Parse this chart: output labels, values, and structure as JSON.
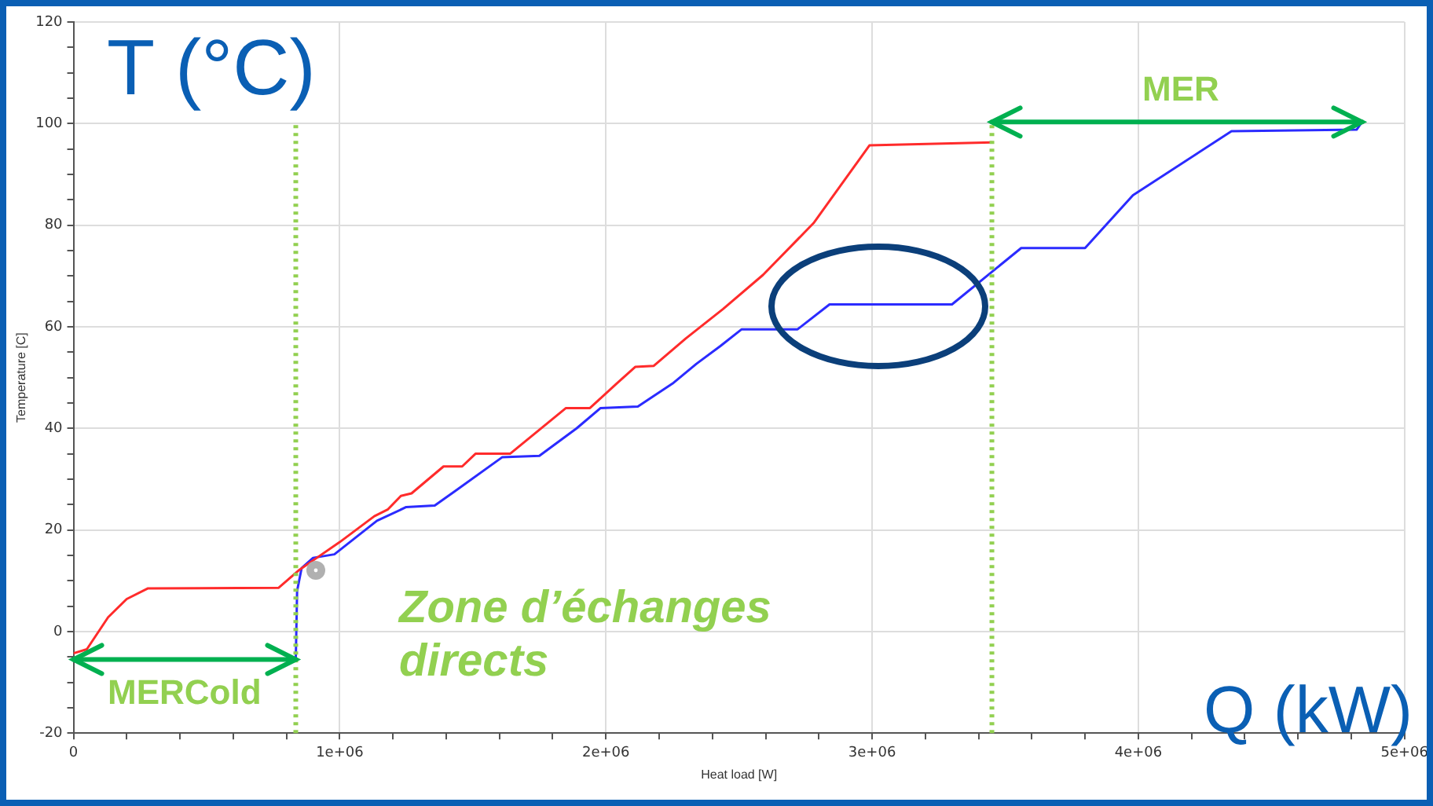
{
  "chart_data": {
    "type": "line",
    "xlabel": "Heat load [W]",
    "ylabel": "Temperature [C]",
    "annotations": [
      "T (°C)",
      "Q (kW)",
      "Zone d’échanges directs",
      "MER",
      {
        "text": "MERCold",
        "x": 835000,
        "y": -5.5
      }
    ],
    "xlim": [
      0,
      5000000
    ],
    "xticks": [
      0,
      {
        "value": 200000,
        "label": null
      },
      {
        "value": 400000,
        "label": null
      },
      {
        "value": 600000,
        "label": null
      },
      {
        "value": 800000,
        "label": null
      },
      {
        "value": 1000000,
        "label": "1e+06"
      },
      {
        "value": 1200000,
        "label": null
      },
      {
        "value": 1400000,
        "label": null
      },
      {
        "value": 1600000,
        "label": null
      },
      {
        "value": 1800000,
        "label": null
      },
      {
        "value": 2000000,
        "label": "2e+06"
      },
      {
        "value": 2200000,
        "label": null
      },
      {
        "value": 2400000,
        "label": null
      },
      {
        "value": 2600000,
        "label": null
      },
      {
        "value": 2800000,
        "label": null
      },
      {
        "value": 3000000,
        "label": "3e+06"
      },
      {
        "value": 3200000,
        "label": null
      },
      {
        "value": 3400000,
        "label": null
      },
      {
        "value": 3600000,
        "label": null
      },
      {
        "value": 3800000,
        "label": null
      },
      {
        "value": 4000000,
        "label": "4e+06"
      },
      {
        "value": 4200000,
        "label": null
      },
      {
        "value": 4400000,
        "label": null
      },
      {
        "value": 4600000,
        "label": null
      },
      {
        "value": 4800000,
        "label": null
      },
      {
        "value": 5000000,
        "label": "5e+06"
      }
    ],
    "ylim": [
      -20,
      120
    ],
    "yticks": [
      -20,
      {
        "value": -15,
        "label": null
      },
      {
        "value": -10,
        "label": null
      },
      {
        "value": -5,
        "label": null
      },
      0,
      {
        "value": 5,
        "label": null
      },
      {
        "value": 10,
        "label": null
      },
      {
        "value": 15,
        "label": null
      },
      20,
      {
        "value": 25,
        "label": null
      },
      {
        "value": 30,
        "label": null
      },
      {
        "value": 35,
        "label": null
      },
      40,
      {
        "value": 45,
        "label": null
      },
      {
        "value": 50,
        "label": null
      },
      {
        "value": 55,
        "label": null
      },
      60,
      {
        "value": 65,
        "label": null
      },
      {
        "value": 70,
        "label": null
      },
      {
        "value": 75,
        "label": null
      },
      80,
      {
        "value": 85,
        "label": null
      },
      {
        "value": 90,
        "label": null
      },
      {
        "value": 95,
        "label": null
      },
      100,
      {
        "value": 105,
        "label": null
      },
      {
        "value": 110,
        "label": null
      },
      {
        "value": 115,
        "label": null
      },
      120
    ],
    "grid": true,
    "legend": false,
    "marker": "none",
    "line_style": "solid",
    "series": [
      {
        "color": "#ff2b2b",
        "x": [
          0,
          50000,
          130000,
          200000,
          280000,
          770000,
          845000,
          900000,
          1000000,
          1130000,
          1180000,
          1230000,
          1270000,
          1390000,
          1460000,
          1510000,
          1640000,
          1850000,
          1940000,
          2040000,
          2110000,
          2180000,
          2300000,
          2440000,
          2590000,
          2780000,
          2990000,
          3450000
        ],
        "values": [
          -4.3,
          -3.5,
          2.8,
          6.4,
          8.5,
          8.6,
          12,
          14,
          17.6,
          22.7,
          24,
          26.7,
          27.2,
          32.5,
          32.5,
          35,
          35,
          44,
          44,
          48.8,
          52.1,
          52.3,
          57.7,
          63.5,
          70.2,
          80.4,
          95.7,
          96.3
        ]
      },
      {
        "color": "#2b2bff",
        "x": [
          835000,
          840000,
          857000,
          900000,
          980000,
          1140000,
          1250000,
          1357000,
          1435000,
          1610000,
          1750000,
          1890000,
          1980000,
          2120000,
          2250000,
          2340000,
          2430000,
          2510000,
          2720000,
          2840000,
          3300000,
          3560000,
          3800000,
          3980000,
          4350000,
          4820000,
          4840000
        ],
        "values": [
          -5.5,
          8,
          12.5,
          14.5,
          15.2,
          21.8,
          24.5,
          24.8,
          27.7,
          34.3,
          34.6,
          40,
          44,
          44.3,
          48.8,
          52.7,
          56.2,
          59.5,
          59.5,
          64.4,
          64.4,
          75.5,
          75.5,
          85.9,
          98.5,
          98.8,
          100.3
        ]
      }
    ],
    "ref_lines": [
      {
        "axis": "x",
        "value": 835000,
        "color": "#92d050",
        "line_style": "dotted"
      },
      {
        "axis": "x",
        "value": 3450000,
        "color": "#92d050",
        "line_style": "dotted"
      }
    ]
  }
}
